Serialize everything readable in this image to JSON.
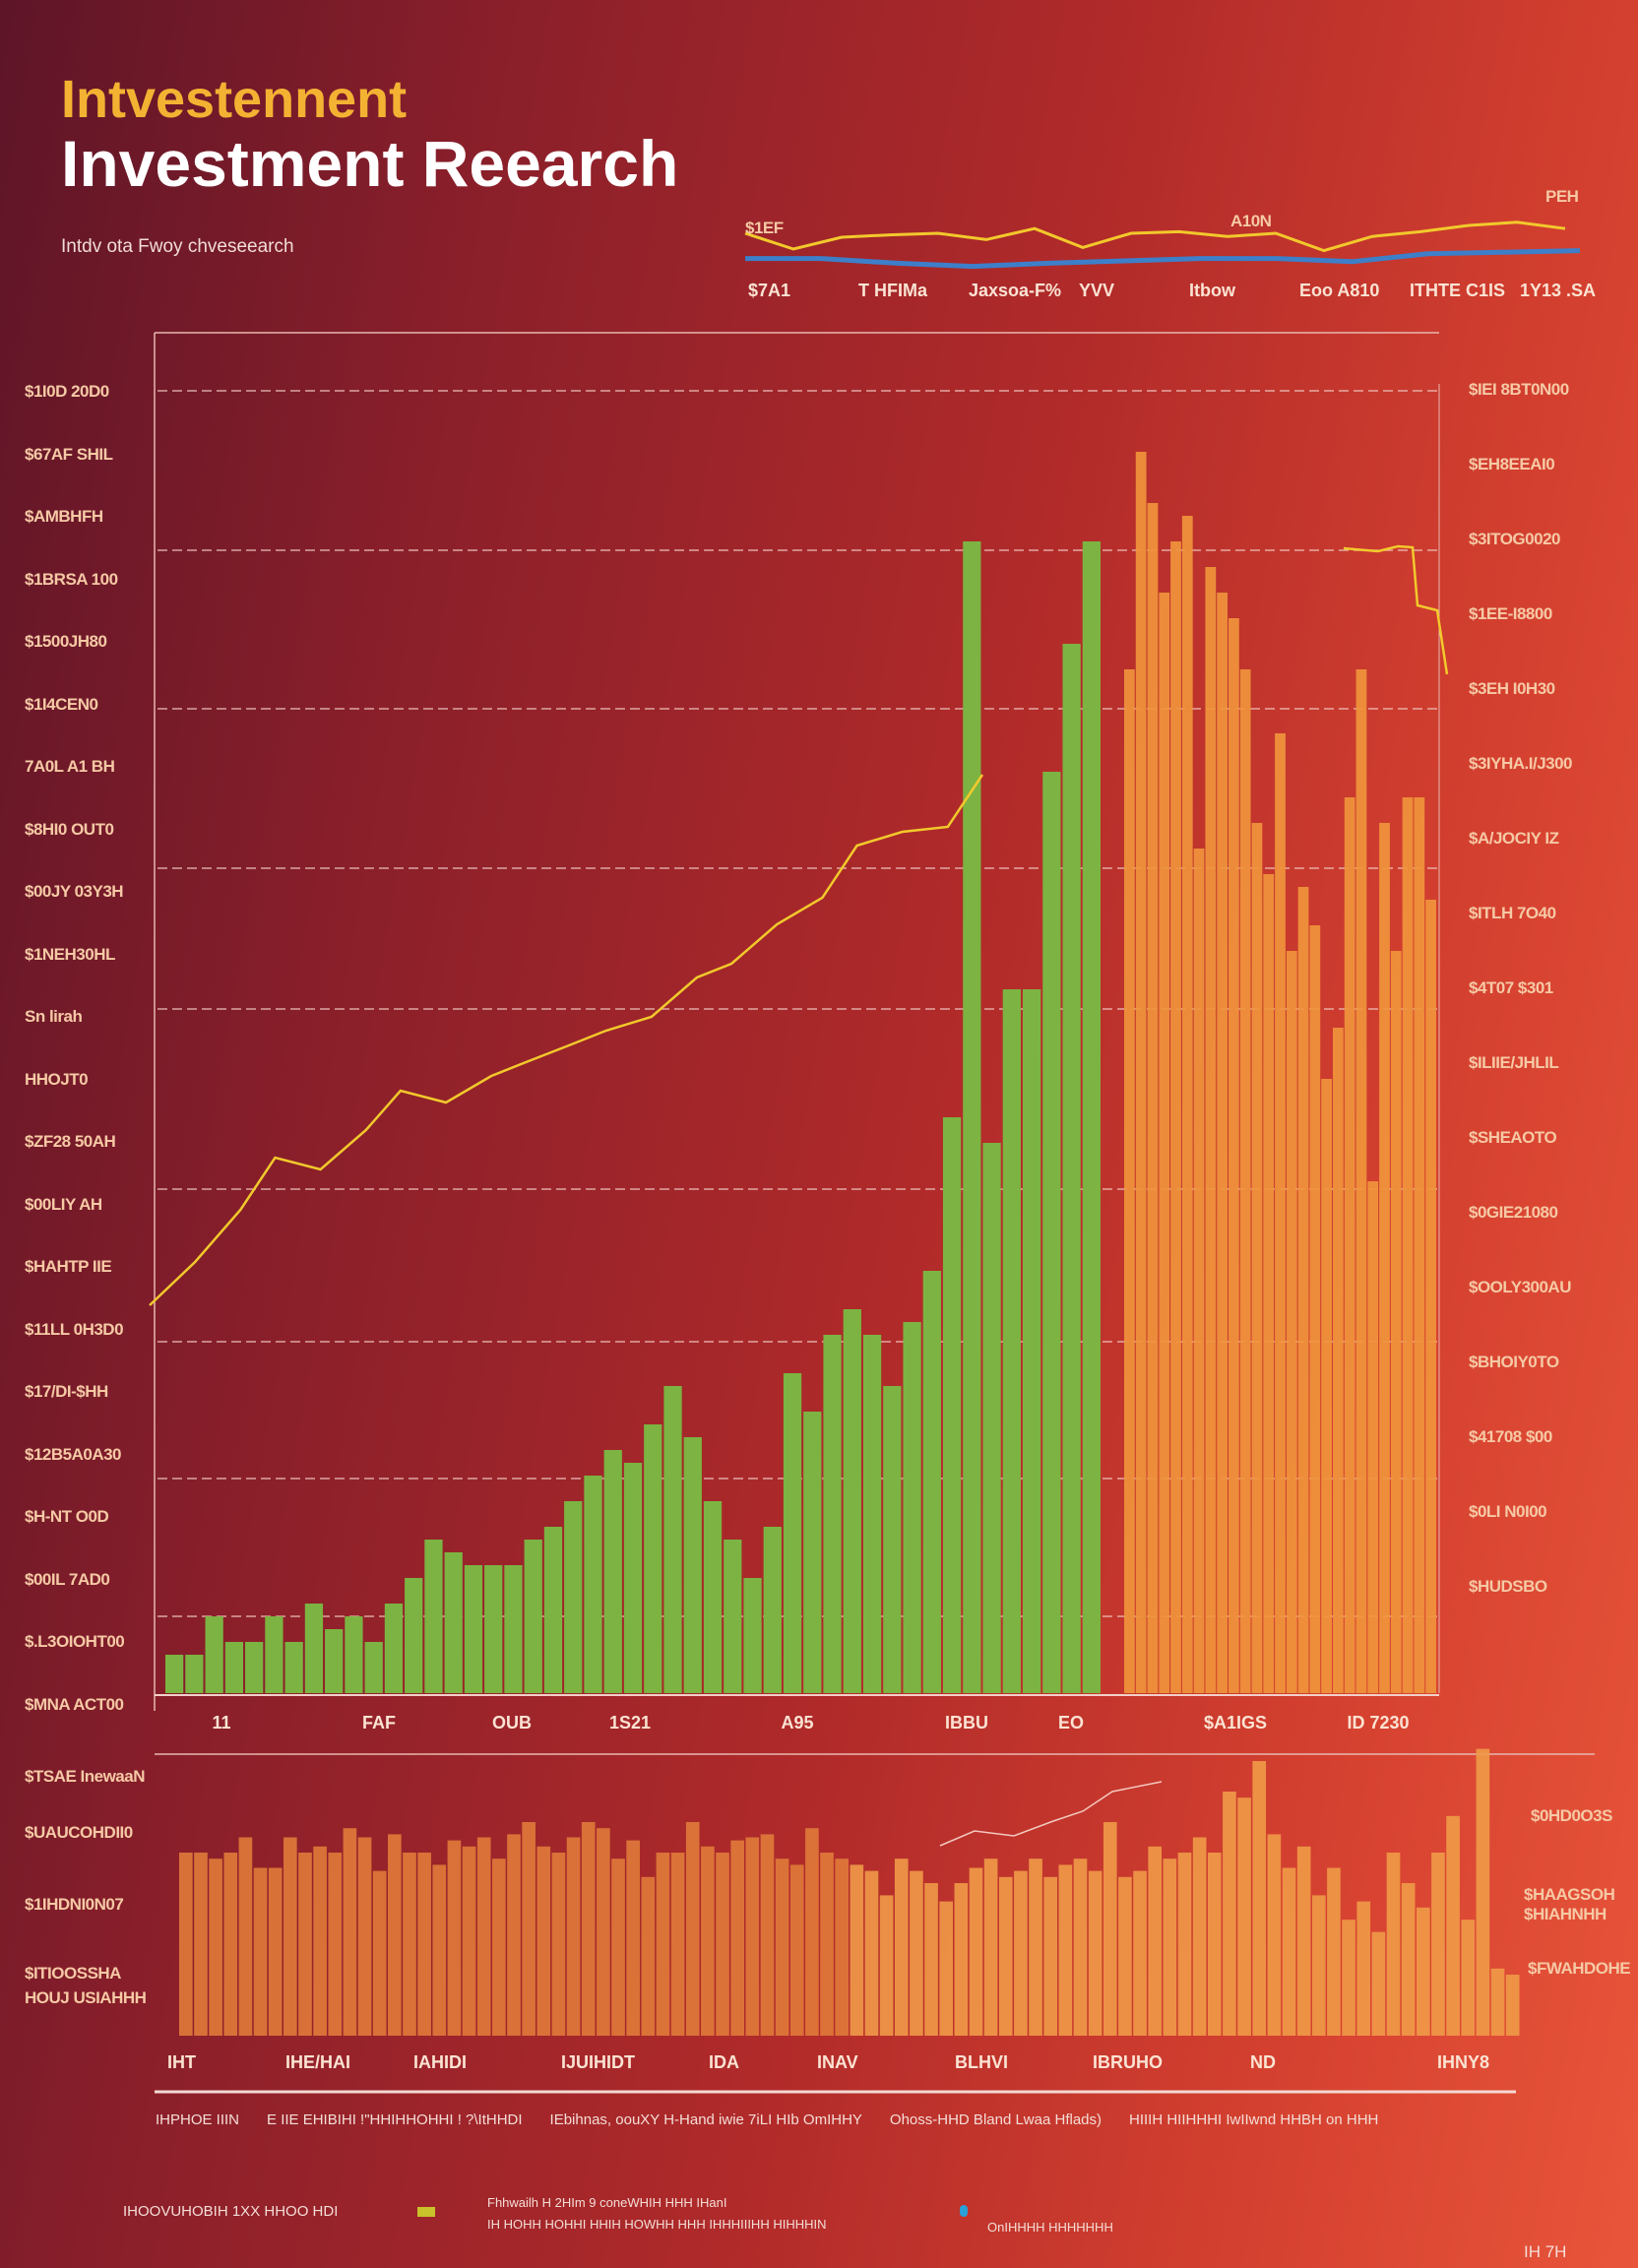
{
  "header": {
    "title_top": "Intvestennent",
    "title_main": "Investment Reearch",
    "subtitle": "Intdv ota Fwoy chveseearch"
  },
  "colors": {
    "green": "#7cb342",
    "orange": "#f0943c",
    "line": "#f2c92c",
    "blue": "#3d7fc9",
    "grid": "#f0c8c0"
  },
  "mini_chart": {
    "labels": [
      "$7A1",
      "T HFIMa",
      "Jaxsoa-F%",
      "YVV",
      "Itbow",
      "Eoo A810",
      "ITHTE C1IS",
      "1Y13 .SA"
    ],
    "annotations": [
      "$1EF",
      "A10N",
      "PEH"
    ]
  },
  "chart_data": [
    {
      "type": "line",
      "name": "mini",
      "series": [
        {
          "name": "yellow",
          "values": [
            60,
            40,
            55,
            58,
            60,
            52,
            66,
            42,
            60,
            62,
            56,
            60,
            38,
            56,
            62,
            70,
            74,
            66
          ]
        },
        {
          "name": "blue",
          "values": [
            28,
            28,
            22,
            18,
            22,
            25,
            28,
            28,
            24,
            34,
            36,
            38
          ]
        }
      ]
    },
    {
      "type": "bar",
      "name": "main",
      "ylim": [
        0,
        100
      ],
      "left_labels": [
        "$1I0D 20D0",
        "$67AF SHIL",
        "$AMBHFH",
        "$1BRSA 100",
        "$1500JH80",
        "$1I4CEN0",
        "7A0L A1 BH",
        "$8HI0 OUT0",
        "$00JY 03Y3H",
        "$1NEH30HL",
        "Sn lirah",
        "HHOJT0",
        "$ZF28 50AH",
        "$00LIY AH",
        "$HAHTP IIE",
        "$11LL 0H3D0",
        "$17/DI-$HH",
        "$12B5A0A30",
        "$H-NT O0D",
        "$00IL 7AD0",
        "$.L3OIOHT00",
        "$MNA ACT00"
      ],
      "right_labels": [
        "$IEI 8BT0N00",
        "$EH8EEAI0",
        "$3ITOG0020",
        "$1EE-I8800",
        "$3EH I0H30",
        "$3IYHA.I/J300",
        "$A/JOCIY IZ",
        "$ITLH 7O40",
        "$4T07 $301",
        "$ILIIE/JHLIL",
        "$SHEAOTO",
        "$0GIE21080",
        "$OOLY300AU",
        "$BHOIY0TO",
        "$41708 $00",
        "$0LI N0I00",
        "$HUDSBO"
      ],
      "x_labels": [
        "11",
        "FAF",
        "OUB",
        "1S21",
        "A95",
        "IBBU",
        "EO",
        "$A1IGS",
        "ID 7230"
      ],
      "green": [
        3,
        3,
        6,
        4,
        4,
        6,
        4,
        7,
        5,
        6,
        4,
        7,
        9,
        12,
        11,
        10,
        10,
        10,
        12,
        13,
        15,
        17,
        19,
        18,
        21,
        24,
        20,
        15,
        12,
        9,
        13,
        25,
        22,
        28,
        30,
        28,
        24,
        29,
        33,
        45,
        90,
        43,
        55,
        55,
        72,
        82,
        90
      ],
      "orange": [
        80,
        97,
        93,
        86,
        90,
        92,
        66,
        88,
        86,
        84,
        80,
        68,
        64,
        75,
        58,
        63,
        60,
        48,
        52,
        70,
        80,
        40,
        68,
        58,
        70,
        70,
        62
      ],
      "line": [
        30,
        34,
        38,
        42,
        41,
        44,
        47,
        46,
        48,
        49,
        51,
        52,
        53,
        56,
        57,
        60,
        62,
        66,
        67,
        68,
        72
      ]
    },
    {
      "type": "bar",
      "name": "bottom",
      "ylim": [
        0,
        100
      ],
      "left_labels": [
        "$TSAE InewaaN",
        "$UAUCOHDII0",
        "$1IHDNI0N07",
        "$ITIOOSSHA",
        "HOUJ USIAHHH"
      ],
      "right_labels": [
        "$0HD0O3S",
        "$HAAGSOH",
        "$HIAHNHH",
        "$FWAHDOHE"
      ],
      "x_labels": [
        "IHT",
        "IHE/HAI",
        "IAHIDI",
        "IJUIHIDT",
        "IDA",
        "INAV",
        "BLHVI",
        "IBRUHO",
        "ND",
        "IHNY8"
      ],
      "values": [
        60,
        60,
        58,
        60,
        65,
        55,
        55,
        65,
        60,
        62,
        60,
        68,
        65,
        54,
        66,
        60,
        60,
        56,
        64,
        62,
        65,
        58,
        66,
        70,
        62,
        60,
        65,
        70,
        68,
        58,
        64,
        52,
        60,
        60,
        70,
        62,
        60,
        64,
        65,
        66,
        58,
        56,
        68,
        60,
        58,
        56,
        54,
        46,
        58,
        54,
        50,
        44,
        50,
        55,
        58,
        52,
        54,
        58,
        52,
        56,
        58,
        54,
        70,
        52,
        54,
        62,
        58,
        60,
        65,
        60,
        80,
        78,
        90,
        66,
        55,
        62,
        46,
        55,
        38,
        44,
        34,
        60,
        50,
        42,
        60,
        72,
        38,
        94,
        22,
        20
      ]
    }
  ],
  "footer": {
    "line1": [
      "IHPHOE IIIN",
      "E IIE EHIBIHI !\"HHIHHOHHI ! ?\\ItHHDI",
      "IEbihnas, oouXY H-Hand iwie 7iLI HIb OmIHHY",
      "Ohoss-HHD Bland Lwaa Hflads)",
      "HIIIH HIIHHHI IwIIwnd HHBH on HHH"
    ],
    "legend_lead": "IHOOVUHOBIH 1XX HHOO HDI",
    "legend_a1": "Fhhwailh H 2HIm 9 coneWHIH HHH IHanI",
    "legend_a2": "IH HOHH HOHHI HHIH HOWHH HHH IHHHIIIHH HIHHHIN",
    "legend_b": "OnIHHHH HHHHHHH",
    "page": "IH 7H"
  }
}
